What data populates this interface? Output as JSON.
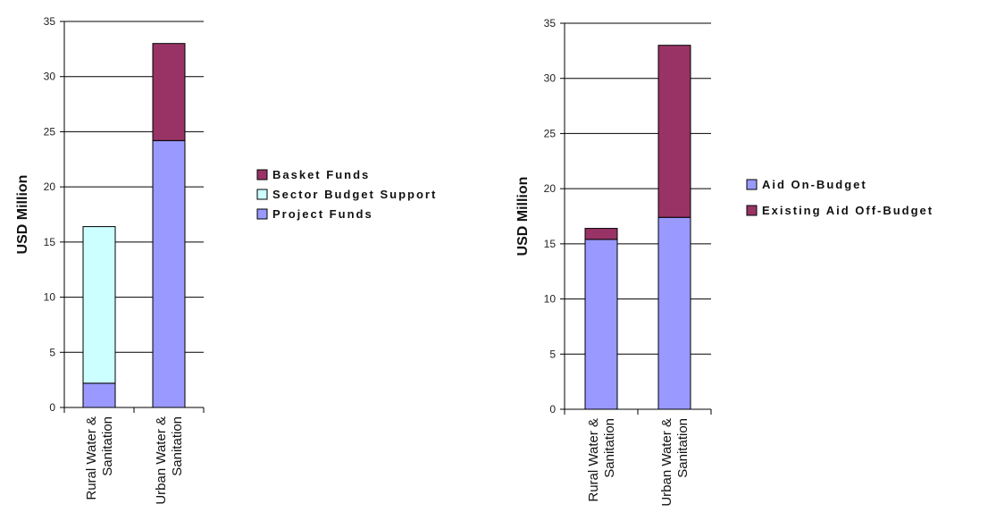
{
  "colors": {
    "basket": "#993366",
    "sector": "#ccffff",
    "project": "#9999ff",
    "on_budget": "#9999ff",
    "off_budget": "#993366"
  },
  "chart_data": [
    {
      "type": "bar",
      "stacked": true,
      "categories": [
        [
          "Rural Water &",
          "Sanitation"
        ],
        [
          "Urban Water &",
          "Sanitation"
        ]
      ],
      "series": [
        {
          "name": "Project Funds",
          "color_key": "project",
          "values": [
            2.2,
            24.2
          ]
        },
        {
          "name": "Sector Budget Support",
          "color_key": "sector",
          "values": [
            14.2,
            0
          ]
        },
        {
          "name": "Basket Funds",
          "color_key": "basket",
          "values": [
            0,
            8.8
          ]
        }
      ],
      "legend_order": [
        "Basket Funds",
        "Sector Budget Support",
        "Project Funds"
      ],
      "legend_position": "right",
      "ylabel": "USD Million",
      "ylim": [
        0,
        35
      ],
      "yticks": [
        0,
        5,
        10,
        15,
        20,
        25,
        30,
        35
      ],
      "grid": true
    },
    {
      "type": "bar",
      "stacked": true,
      "categories": [
        [
          "Rural Water &",
          "Sanitation"
        ],
        [
          "Urban Water &",
          "Sanitation"
        ]
      ],
      "series": [
        {
          "name": "Aid On-Budget",
          "color_key": "on_budget",
          "values": [
            15.4,
            17.4
          ]
        },
        {
          "name": "Existing Aid Off-Budget",
          "color_key": "off_budget",
          "values": [
            1.0,
            15.6
          ]
        }
      ],
      "legend_order": [
        "Aid On-Budget",
        "Existing Aid Off-Budget"
      ],
      "legend_position": "right",
      "ylabel": "USD Million",
      "ylim": [
        0,
        35
      ],
      "yticks": [
        0,
        5,
        10,
        15,
        20,
        25,
        30,
        35
      ],
      "grid": true
    }
  ]
}
